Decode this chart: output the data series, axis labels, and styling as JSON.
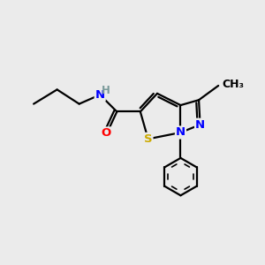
{
  "background_color": "#ebebeb",
  "bond_color": "#000000",
  "bond_width": 1.6,
  "atom_colors": {
    "N": "#0000ff",
    "O": "#ff0000",
    "S": "#ccaa00",
    "H": "#7a9a9a",
    "C": "#000000"
  },
  "font_size": 9.5
}
